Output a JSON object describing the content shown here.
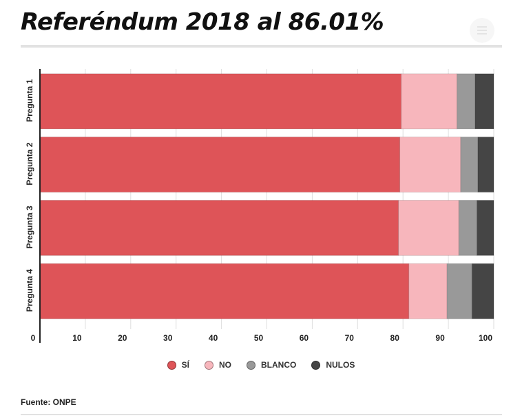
{
  "header": {
    "title": "Referéndum 2018 al 86.01%"
  },
  "legend": [
    {
      "label": "SÍ",
      "color": "#de5458"
    },
    {
      "label": "NO",
      "color": "#f7b6bc"
    },
    {
      "label": "BLANCO",
      "color": "#999999"
    },
    {
      "label": "NULOS",
      "color": "#454545"
    }
  ],
  "footer": {
    "source": "Fuente: ONPE"
  },
  "chart_data": {
    "type": "bar",
    "orientation": "horizontal",
    "stacked": true,
    "categories": [
      "Pregunta 1",
      "Pregunta 2",
      "Pregunta 3",
      "Pregunta 4"
    ],
    "series": [
      {
        "name": "SÍ",
        "values": [
          79.6,
          79.3,
          79.0,
          81.3
        ],
        "color": "#de5458"
      },
      {
        "name": "NO",
        "values": [
          12.3,
          13.4,
          13.3,
          8.4
        ],
        "color": "#f7b6bc"
      },
      {
        "name": "BLANCO",
        "values": [
          4.0,
          3.8,
          4.0,
          5.5
        ],
        "color": "#999999"
      },
      {
        "name": "NULOS",
        "values": [
          4.1,
          3.5,
          3.7,
          4.8
        ],
        "color": "#454545"
      }
    ],
    "xlim": [
      0,
      100
    ],
    "xticks": [
      0,
      10,
      20,
      30,
      40,
      50,
      60,
      70,
      80,
      90,
      100
    ],
    "grid": true,
    "legend_position": "bottom"
  }
}
